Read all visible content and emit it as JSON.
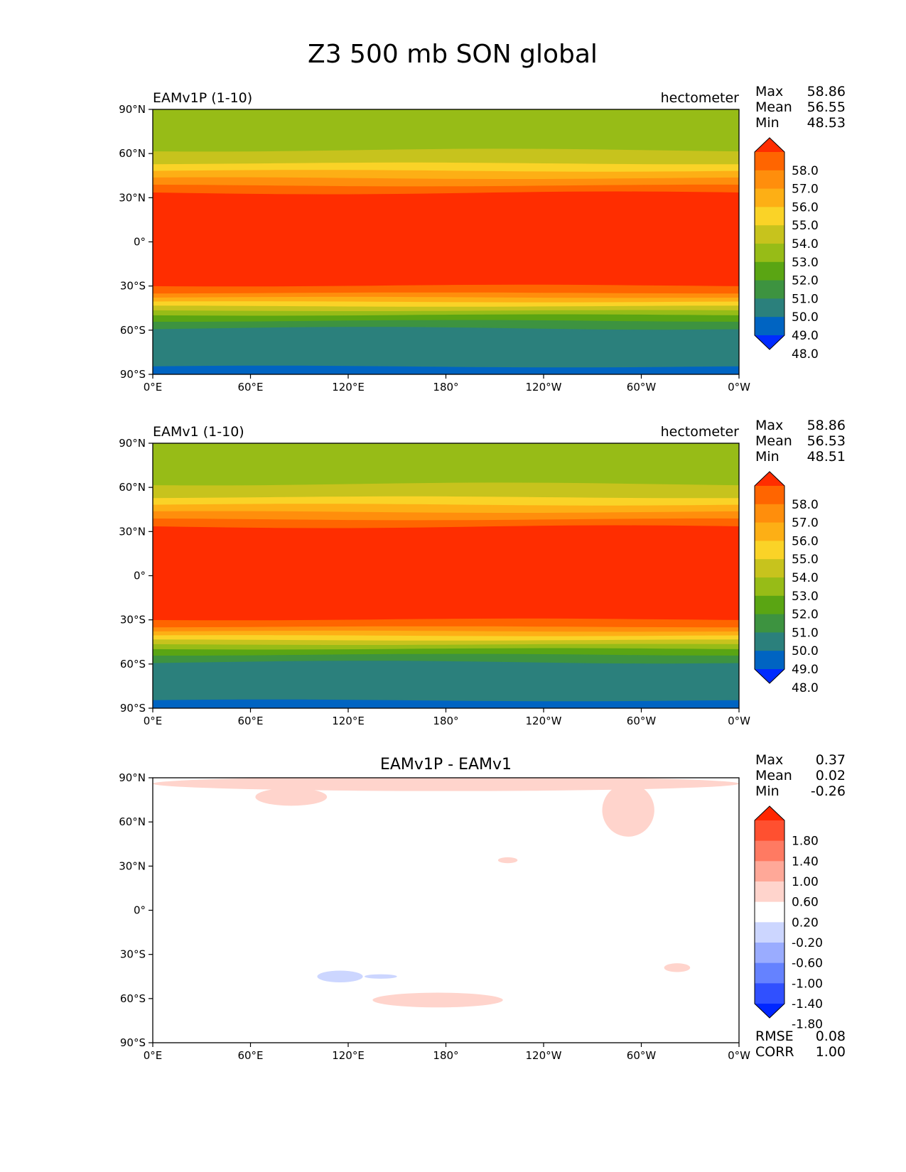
{
  "figure": {
    "title": "Z3 500 mb SON global",
    "background": "#ffffff"
  },
  "axes": {
    "lon_ticks": [
      "0°E",
      "60°E",
      "120°E",
      "180°",
      "120°W",
      "60°W",
      "0°W"
    ],
    "lat_ticks": [
      "90°N",
      "60°N",
      "30°N",
      "0°",
      "30°S",
      "60°S",
      "90°S"
    ]
  },
  "panels": [
    {
      "id": "test",
      "left_title": "EAMv1P (1-10)",
      "center_title": "",
      "right_title": "hectometer",
      "stats": [
        {
          "label": "Max",
          "value": "58.86"
        },
        {
          "label": "Mean",
          "value": "56.55"
        },
        {
          "label": "Min",
          "value": "48.53"
        }
      ],
      "colorbar": {
        "labels": [
          "58.0",
          "57.0",
          "56.0",
          "55.0",
          "54.0",
          "53.0",
          "52.0",
          "51.0",
          "50.0",
          "49.0",
          "48.0"
        ],
        "colors": [
          "#002bff",
          "#0064c2",
          "#2b807c",
          "#3d9340",
          "#5aa513",
          "#97bc17",
          "#c7c31d",
          "#fad327",
          "#fdaf15",
          "#ff8e0c",
          "#ff6500",
          "#ff2d00"
        ]
      },
      "field": {
        "bands": [
          {
            "level": 53.0,
            "color": "#97bc17",
            "lat_south": 62,
            "lat_north": 90
          },
          {
            "level": 53.5,
            "color": "#c7c31d",
            "lat_south": 53,
            "lat_north": 62
          },
          {
            "level": 54.5,
            "color": "#fad327",
            "lat_south": 48,
            "lat_north": 53
          },
          {
            "level": 55.5,
            "color": "#fdaf15",
            "lat_south": 43,
            "lat_north": 48
          },
          {
            "level": 56.5,
            "color": "#ff8e0c",
            "lat_south": 38,
            "lat_north": 43
          },
          {
            "level": 57.5,
            "color": "#ff6500",
            "lat_south": 33,
            "lat_north": 38
          },
          {
            "level": 58.5,
            "color": "#ff2d00",
            "lat_south": -30,
            "lat_north": 33
          },
          {
            "level": 57.5,
            "color": "#ff6500",
            "lat_south": -35,
            "lat_north": -30
          },
          {
            "level": 56.5,
            "color": "#ff8e0c",
            "lat_south": -38,
            "lat_north": -35
          },
          {
            "level": 55.5,
            "color": "#fdaf15",
            "lat_south": -41,
            "lat_north": -38
          },
          {
            "level": 54.5,
            "color": "#fad327",
            "lat_south": -44,
            "lat_north": -41
          },
          {
            "level": 53.5,
            "color": "#c7c31d",
            "lat_south": -47,
            "lat_north": -44
          },
          {
            "level": 52.5,
            "color": "#97bc17",
            "lat_south": -50,
            "lat_north": -47
          },
          {
            "level": 51.5,
            "color": "#5aa513",
            "lat_south": -54,
            "lat_north": -50
          },
          {
            "level": 50.5,
            "color": "#3d9340",
            "lat_south": -59,
            "lat_north": -54
          },
          {
            "level": 49.5,
            "color": "#2b807c",
            "lat_south": -85,
            "lat_north": -59
          },
          {
            "level": 48.5,
            "color": "#0064c2",
            "lat_south": -90,
            "lat_north": -85
          }
        ]
      }
    },
    {
      "id": "reference",
      "left_title": "EAMv1 (1-10)",
      "center_title": "",
      "right_title": "hectometer",
      "stats": [
        {
          "label": "Max",
          "value": "58.86"
        },
        {
          "label": "Mean",
          "value": "56.53"
        },
        {
          "label": "Min",
          "value": "48.51"
        }
      ],
      "colorbar": {
        "labels": [
          "58.0",
          "57.0",
          "56.0",
          "55.0",
          "54.0",
          "53.0",
          "52.0",
          "51.0",
          "50.0",
          "49.0",
          "48.0"
        ],
        "colors": [
          "#002bff",
          "#0064c2",
          "#2b807c",
          "#3d9340",
          "#5aa513",
          "#97bc17",
          "#c7c31d",
          "#fad327",
          "#fdaf15",
          "#ff8e0c",
          "#ff6500",
          "#ff2d00"
        ]
      },
      "field": {
        "bands": [
          {
            "level": 53.0,
            "color": "#97bc17",
            "lat_south": 62,
            "lat_north": 90
          },
          {
            "level": 53.5,
            "color": "#c7c31d",
            "lat_south": 53,
            "lat_north": 62
          },
          {
            "level": 54.5,
            "color": "#fad327",
            "lat_south": 48,
            "lat_north": 53
          },
          {
            "level": 55.5,
            "color": "#fdaf15",
            "lat_south": 43,
            "lat_north": 48
          },
          {
            "level": 56.5,
            "color": "#ff8e0c",
            "lat_south": 38,
            "lat_north": 43
          },
          {
            "level": 57.5,
            "color": "#ff6500",
            "lat_south": 33,
            "lat_north": 38
          },
          {
            "level": 58.5,
            "color": "#ff2d00",
            "lat_south": -30,
            "lat_north": 33
          },
          {
            "level": 57.5,
            "color": "#ff6500",
            "lat_south": -35,
            "lat_north": -30
          },
          {
            "level": 56.5,
            "color": "#ff8e0c",
            "lat_south": -38,
            "lat_north": -35
          },
          {
            "level": 55.5,
            "color": "#fdaf15",
            "lat_south": -41,
            "lat_north": -38
          },
          {
            "level": 54.5,
            "color": "#fad327",
            "lat_south": -44,
            "lat_north": -41
          },
          {
            "level": 53.5,
            "color": "#c7c31d",
            "lat_south": -47,
            "lat_north": -44
          },
          {
            "level": 52.5,
            "color": "#97bc17",
            "lat_south": -50,
            "lat_north": -47
          },
          {
            "level": 51.5,
            "color": "#5aa513",
            "lat_south": -54,
            "lat_north": -50
          },
          {
            "level": 50.5,
            "color": "#3d9340",
            "lat_south": -59,
            "lat_north": -54
          },
          {
            "level": 49.5,
            "color": "#2b807c",
            "lat_south": -85,
            "lat_north": -59
          },
          {
            "level": 48.5,
            "color": "#0064c2",
            "lat_south": -90,
            "lat_north": -85
          }
        ]
      }
    },
    {
      "id": "difference",
      "left_title": "",
      "center_title": "EAMv1P - EAMv1",
      "right_title": "",
      "stats": [
        {
          "label": "Max",
          "value": "0.37"
        },
        {
          "label": "Mean",
          "value": "0.02"
        },
        {
          "label": "Min",
          "value": "-0.26"
        }
      ],
      "extra_stats": [
        {
          "label": "RMSE",
          "value": "0.08"
        },
        {
          "label": "CORR",
          "value": "1.00"
        }
      ],
      "colorbar": {
        "labels": [
          "1.80",
          "1.40",
          "1.00",
          "0.60",
          "0.20",
          "-0.20",
          "-0.60",
          "-1.00",
          "-1.40",
          "-1.80"
        ],
        "colors": [
          "#0026ff",
          "#3050ff",
          "#6582ff",
          "#9aacff",
          "#ccd6ff",
          "#ffffff",
          "#ffd4cc",
          "#ffa898",
          "#ff7a62",
          "#ff5030",
          "#ff2600"
        ]
      },
      "field": {
        "background": "#ffffff",
        "anomalies": [
          {
            "value": 0.3,
            "color": "#ffd4cc",
            "lon": 180,
            "lat": 86,
            "rlon": 180,
            "rlat": 5
          },
          {
            "value": 0.3,
            "color": "#ffd4cc",
            "lon": 85,
            "lat": 77,
            "rlon": 22,
            "rlat": 6
          },
          {
            "value": 0.3,
            "color": "#ffd4cc",
            "lon": 292,
            "lat": 68,
            "rlon": 16,
            "rlat": 18
          },
          {
            "value": 0.3,
            "color": "#ffd4cc",
            "lon": 218,
            "lat": 34,
            "rlon": 6,
            "rlat": 2
          },
          {
            "value": 0.3,
            "color": "#ffd4cc",
            "lon": 175,
            "lat": -61,
            "rlon": 40,
            "rlat": 5
          },
          {
            "value": 0.3,
            "color": "#ffd4cc",
            "lon": 322,
            "lat": -39,
            "rlon": 8,
            "rlat": 3
          },
          {
            "value": -0.25,
            "color": "#ccd6ff",
            "lon": 115,
            "lat": -45,
            "rlon": 14,
            "rlat": 4
          },
          {
            "value": -0.25,
            "color": "#ccd6ff",
            "lon": 140,
            "lat": -45,
            "rlon": 10,
            "rlat": 1.5
          }
        ]
      }
    }
  ]
}
